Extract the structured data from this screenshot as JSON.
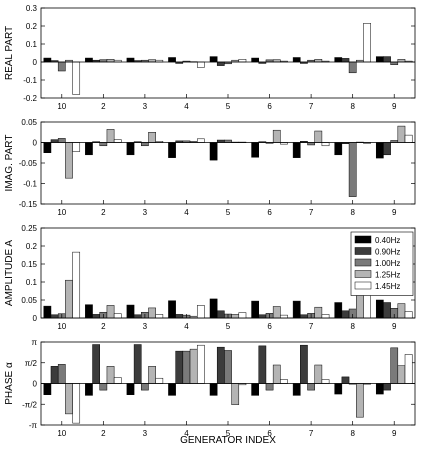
{
  "chart_data": [
    {
      "type": "bar",
      "ylabel": "REAL PART",
      "ylim": [
        -0.2,
        0.3
      ],
      "yticks": [
        -0.2,
        -0.1,
        0,
        0.1,
        0.2,
        0.3
      ],
      "ytick_labels": [
        "-0.2",
        "-0.1",
        "0",
        "0.1",
        "0.2",
        "0.3"
      ],
      "categories": [
        "10",
        "2",
        "3",
        "4",
        "5",
        "6",
        "7",
        "8",
        "9"
      ],
      "series": [
        {
          "name": "0.40Hz",
          "values": [
            0.022,
            0.022,
            0.022,
            0.025,
            0.03,
            0.022,
            0.025,
            0.025,
            0.03
          ]
        },
        {
          "name": "0.90Hz",
          "values": [
            0.008,
            0.01,
            0.008,
            -0.008,
            -0.02,
            -0.008,
            -0.008,
            0.02,
            0.03
          ]
        },
        {
          "name": "1.00Hz",
          "values": [
            -0.05,
            0.013,
            0.01,
            0.005,
            -0.01,
            0.012,
            0.01,
            -0.06,
            -0.015
          ]
        },
        {
          "name": "1.25Hz",
          "values": [
            0.01,
            0.015,
            0.013,
            0.002,
            0.01,
            0.013,
            0.015,
            0.01,
            0.015
          ]
        },
        {
          "name": "1.45Hz",
          "values": [
            -0.18,
            0.01,
            0.01,
            -0.03,
            0.015,
            0.005,
            0.005,
            0.215,
            0.005
          ]
        }
      ]
    },
    {
      "type": "bar",
      "ylabel": "IMAG. PART",
      "ylim": [
        -0.15,
        0.05
      ],
      "yticks": [
        -0.15,
        -0.1,
        -0.05,
        0,
        0.05
      ],
      "ytick_labels": [
        "-0.15",
        "-0.1",
        "-0.05",
        "0",
        "0.05"
      ],
      "categories": [
        "10",
        "2",
        "3",
        "4",
        "5",
        "6",
        "7",
        "8",
        "9"
      ],
      "series": [
        {
          "name": "0.40Hz",
          "values": [
            -0.025,
            -0.03,
            -0.03,
            -0.037,
            -0.043,
            -0.036,
            -0.037,
            -0.03,
            -0.038
          ]
        },
        {
          "name": "0.90Hz",
          "values": [
            0.007,
            0.002,
            0.002,
            0.004,
            0.006,
            0.002,
            0.003,
            -0.003,
            -0.03
          ]
        },
        {
          "name": "1.00Hz",
          "values": [
            0.01,
            -0.008,
            -0.008,
            0.004,
            0.006,
            -0.002,
            -0.006,
            -0.132,
            0.005
          ]
        },
        {
          "name": "1.25Hz",
          "values": [
            -0.087,
            0.032,
            0.025,
            0.003,
            0.001,
            0.03,
            0.028,
            0.001,
            0.04
          ]
        },
        {
          "name": "1.45Hz",
          "values": [
            -0.022,
            0.007,
            0.003,
            0.009,
            0.001,
            -0.004,
            -0.008,
            -0.002,
            0.018
          ]
        }
      ]
    },
    {
      "type": "bar",
      "ylabel": "AMPLITUDE A",
      "ylim": [
        0,
        0.25
      ],
      "yticks": [
        0,
        0.05,
        0.1,
        0.15,
        0.2,
        0.25
      ],
      "ytick_labels": [
        "0",
        "0.05",
        "0.1",
        "0.15",
        "0.2",
        "0.25"
      ],
      "categories": [
        "10",
        "2",
        "3",
        "4",
        "5",
        "6",
        "7",
        "8",
        "9"
      ],
      "series": [
        {
          "name": "0.40Hz",
          "values": [
            0.033,
            0.037,
            0.036,
            0.048,
            0.053,
            0.047,
            0.047,
            0.043,
            0.05
          ]
        },
        {
          "name": "0.90Hz",
          "values": [
            0.009,
            0.01,
            0.009,
            0.01,
            0.02,
            0.009,
            0.009,
            0.02,
            0.043
          ]
        },
        {
          "name": "1.00Hz",
          "values": [
            0.012,
            0.016,
            0.016,
            0.008,
            0.011,
            0.013,
            0.013,
            0.025,
            0.027
          ]
        },
        {
          "name": "1.25Hz",
          "values": [
            0.105,
            0.035,
            0.028,
            0.005,
            0.01,
            0.032,
            0.03,
            0.147,
            0.04
          ]
        },
        {
          "name": "1.45Hz",
          "values": [
            0.183,
            0.012,
            0.01,
            0.035,
            0.015,
            0.008,
            0.01,
            0.215,
            0.018
          ]
        }
      ],
      "legend": "top-right"
    },
    {
      "type": "bar",
      "ylabel": "PHASE α",
      "ylim": [
        -3.1416,
        3.1416
      ],
      "yticks": [
        -3.1416,
        -1.5708,
        0,
        1.5708,
        3.1416
      ],
      "ytick_labels": [
        "-π",
        "-π/2",
        "0",
        "π/2",
        "π"
      ],
      "categories": [
        "10",
        "2",
        "3",
        "4",
        "5",
        "6",
        "7",
        "8",
        "9"
      ],
      "series": [
        {
          "name": "0.40Hz",
          "values": [
            -0.85,
            -0.9,
            -0.85,
            -0.9,
            -0.9,
            -0.9,
            -0.9,
            -0.8,
            -0.8
          ]
        },
        {
          "name": "0.90Hz",
          "values": [
            1.3,
            2.95,
            2.95,
            2.45,
            2.75,
            2.85,
            2.9,
            0.5,
            -0.5
          ]
        },
        {
          "name": "1.00Hz",
          "values": [
            1.45,
            -0.5,
            -0.5,
            2.45,
            2.5,
            -0.5,
            -0.5,
            -0.05,
            2.7
          ]
        },
        {
          "name": "1.25Hz",
          "values": [
            -2.3,
            1.3,
            1.3,
            2.6,
            -1.6,
            1.4,
            1.4,
            -2.55,
            1.35
          ]
        },
        {
          "name": "1.45Hz",
          "values": [
            -3.0,
            0.45,
            0.4,
            2.9,
            -0.1,
            0.3,
            0.3,
            -0.05,
            2.2
          ]
        }
      ]
    }
  ],
  "xlabel": "GENERATOR INDEX",
  "colors": [
    "#000000",
    "#3c3c3c",
    "#7a7a7a",
    "#b4b4b4",
    "#ffffff"
  ]
}
